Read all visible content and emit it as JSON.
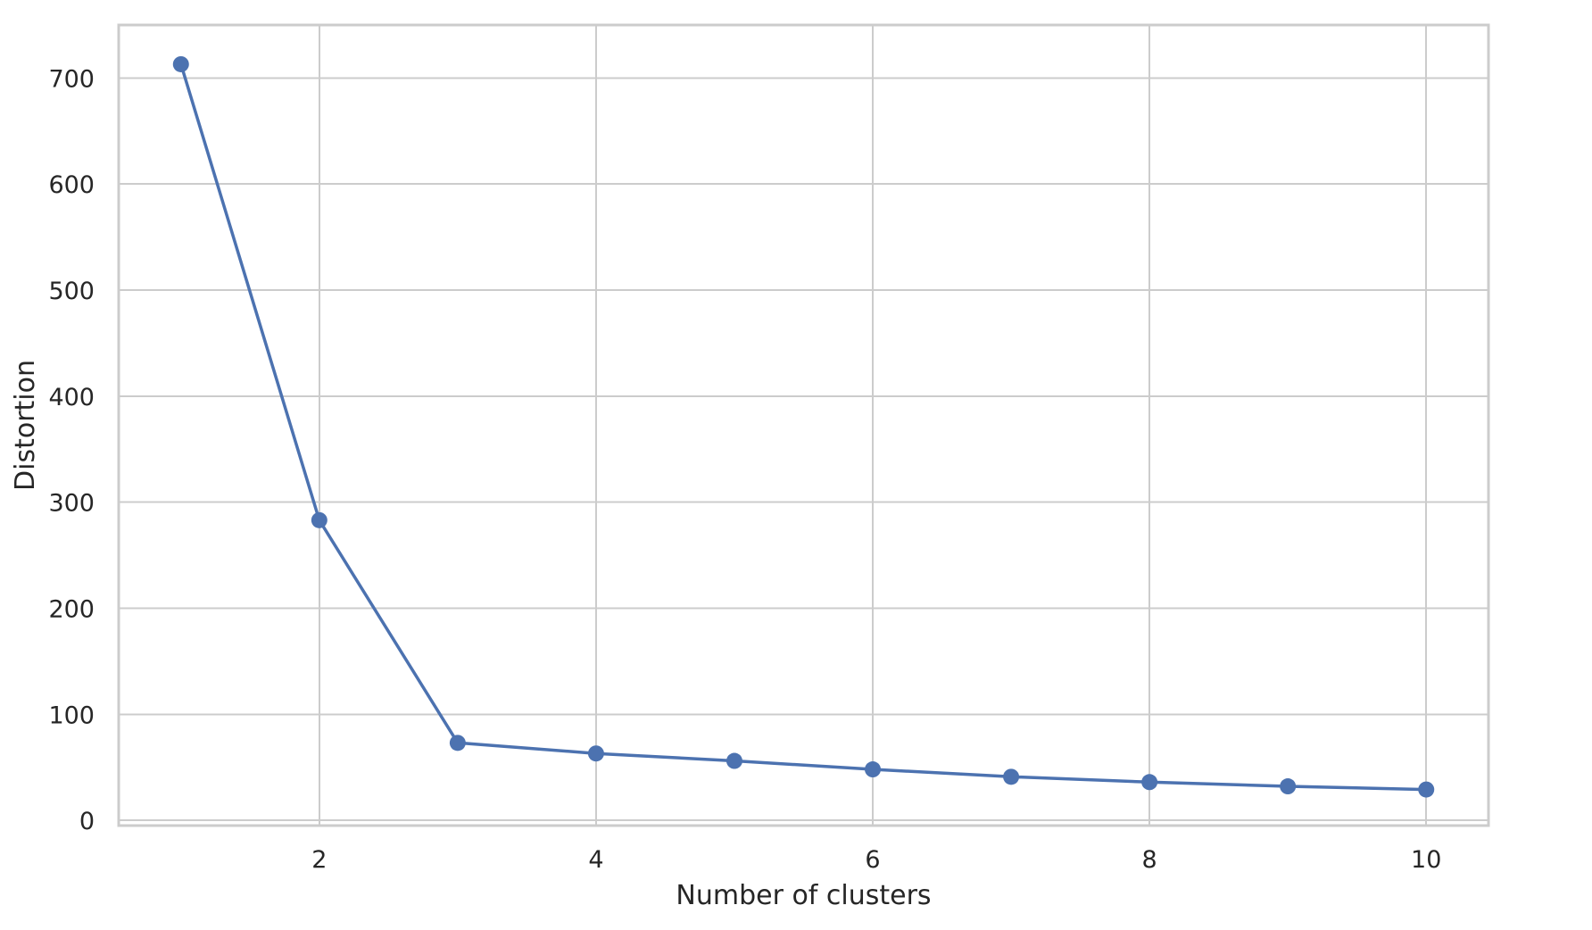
{
  "chart_data": {
    "type": "line",
    "title": "",
    "xlabel": "Number of clusters",
    "ylabel": "Distortion",
    "xlim": [
      0.55,
      10.45
    ],
    "ylim": [
      -5,
      750
    ],
    "xticks": [
      2,
      4,
      6,
      8,
      10
    ],
    "yticks": [
      0,
      100,
      200,
      300,
      400,
      500,
      600,
      700
    ],
    "grid": true,
    "legend": "none",
    "series": [
      {
        "x": [
          1,
          2,
          3,
          4,
          5,
          6,
          7,
          8,
          9,
          10
        ],
        "values": [
          713,
          283,
          73,
          63,
          56,
          48,
          41,
          36,
          32,
          29
        ],
        "color": "#4c72b0",
        "marker": "circle"
      }
    ]
  }
}
